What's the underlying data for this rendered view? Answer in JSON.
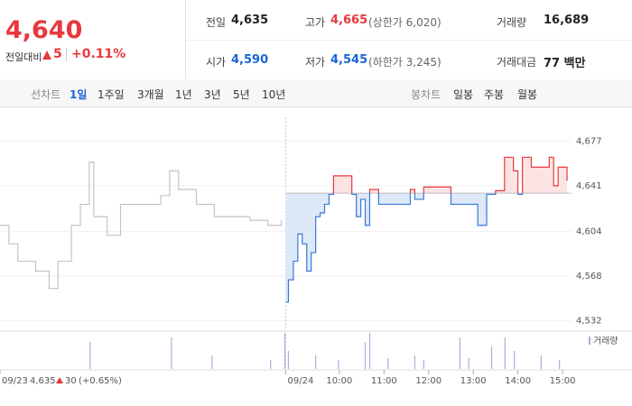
{
  "quote": {
    "price": "4,640",
    "change_label": "전일대비",
    "change": "5",
    "change_pct": "+0.11%",
    "color": "#e8383d"
  },
  "stats": [
    [
      {
        "label": "전일",
        "value": "4,635",
        "color": "#222"
      },
      {
        "label": "고가",
        "value": "4,665",
        "note": "(상한가 6,020)",
        "color": "#e8383d"
      },
      {
        "label": "거래량",
        "value": "16,689",
        "color": "#222"
      }
    ],
    [
      {
        "label": "시가",
        "value": "4,590",
        "color": "#1a64d6"
      },
      {
        "label": "저가",
        "value": "4,545",
        "note": "(하한가 3,245)",
        "color": "#1a64d6"
      },
      {
        "label": "거래대금",
        "value": "77 백만",
        "color": "#222"
      }
    ]
  ],
  "tabs": {
    "line_label": "선차트",
    "line_periods": [
      "1일",
      "1주일",
      "3개월",
      "1년",
      "3년",
      "5년",
      "10년"
    ],
    "active_period": 0,
    "candle_label": "봉차트",
    "candle_periods": [
      "일봉",
      "주봉",
      "월봉"
    ]
  },
  "chart_data": {
    "type": "line",
    "xlim": [
      0,
      128
    ],
    "ylim": [
      4525,
      4689
    ],
    "yticks": [
      {
        "value": 4532,
        "label": "4,532"
      },
      {
        "value": 4568,
        "label": "4,568"
      },
      {
        "value": 4604,
        "label": "4,604"
      },
      {
        "value": 4641,
        "label": "4,641"
      },
      {
        "value": 4677,
        "label": "4,677"
      }
    ],
    "xticks": [
      {
        "value": 0,
        "label": "09/23"
      },
      {
        "value": 64,
        "label": "09/24"
      },
      {
        "value": 76,
        "label": "10:00"
      },
      {
        "value": 86,
        "label": "11:00"
      },
      {
        "value": 96,
        "label": "12:00"
      },
      {
        "value": 106,
        "label": "13:00"
      },
      {
        "value": 116,
        "label": "14:00"
      },
      {
        "value": 126,
        "label": "15:00"
      }
    ],
    "prev_close": {
      "value": 4635,
      "label": "4,635"
    },
    "prev_change": "30",
    "prev_change_pct": "(+0.65%)",
    "grid": true,
    "series": [
      {
        "color": "#c4c4c4",
        "x": [
          0,
          2,
          4,
          8,
          11,
          13,
          16,
          18,
          20,
          21,
          24,
          27,
          30,
          33,
          36,
          38,
          40,
          44,
          48,
          52,
          56,
          60,
          63
        ],
        "values": [
          4609,
          4594,
          4580,
          4572,
          4558,
          4580,
          4609,
          4626,
          4660,
          4616,
          4601,
          4626,
          4626,
          4626,
          4633,
          4653,
          4638,
          4626,
          4616,
          4616,
          4613,
          4609,
          4613
        ]
      },
      {
        "color_up": "#e8383d",
        "color_down": "#3b78d8",
        "fill_up": "#fde4e4",
        "fill_down": "#dde9f9",
        "x": [
          64,
          64.6,
          65.7,
          66.7,
          67.7,
          68.7,
          69.7,
          70.7,
          71.7,
          72.7,
          73.7,
          74.7,
          76.8,
          78.8,
          79.8,
          80.8,
          81.8,
          82.8,
          84.8,
          88.9,
          91.9,
          92.9,
          94.9,
          99,
          101,
          105,
          107,
          109,
          111,
          113,
          115,
          116,
          117,
          119,
          121,
          123,
          124,
          125,
          127
        ],
        "values": [
          4547,
          4565,
          4580,
          4602,
          4594,
          4572,
          4587,
          4616,
          4619,
          4626,
          4634,
          4649,
          4649,
          4634,
          4616,
          4630,
          4609,
          4638,
          4626,
          4626,
          4638,
          4630,
          4640,
          4640,
          4626,
          4626,
          4609,
          4634,
          4637,
          4664,
          4653,
          4634,
          4664,
          4656,
          4656,
          4664,
          4641,
          4656,
          4645
        ]
      }
    ],
    "volume": {
      "legend": "거래량",
      "color": "#b3aad6",
      "ylim": [
        0,
        1600
      ],
      "x": [
        20.2,
        38.4,
        47.5,
        60.6,
        63.8,
        64.6,
        70.7,
        75.8,
        81.8,
        82.8,
        86.9,
        92.9,
        94.9,
        103,
        105,
        110.1,
        113.1,
        115.2,
        121.2,
        125.3
      ],
      "values": [
        1200,
        1400,
        600,
        400,
        1600,
        800,
        600,
        400,
        1200,
        1600,
        480,
        600,
        400,
        1400,
        480,
        1000,
        1400,
        800,
        600,
        400
      ]
    }
  }
}
